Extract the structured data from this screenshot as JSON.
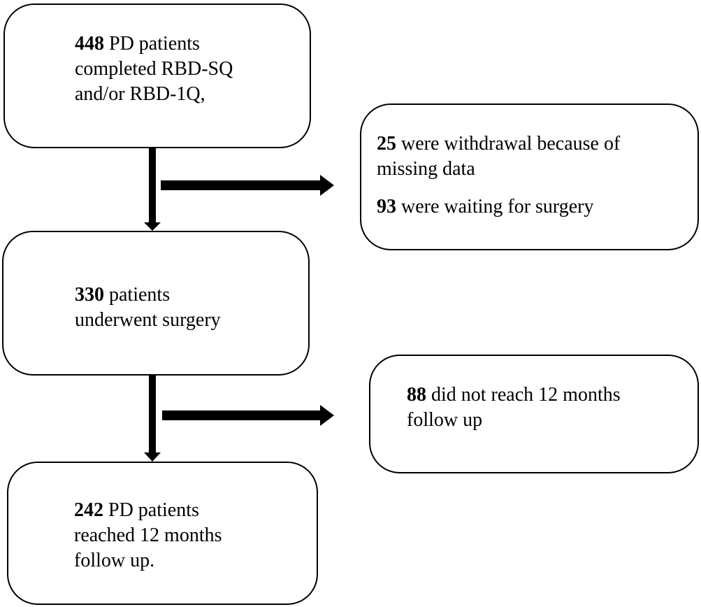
{
  "flowchart": {
    "enrolled": {
      "count": "448",
      "lines": [
        " PD patients",
        "completed RBD-SQ",
        "and/or RBD-1Q,"
      ]
    },
    "excluded_first": {
      "items": [
        {
          "count": "25",
          "lines": [
            " were withdrawal because of",
            "missing data"
          ]
        },
        {
          "count": "93",
          "lines": [
            " were waiting for surgery"
          ]
        }
      ]
    },
    "surgery": {
      "count": "330",
      "lines": [
        " patients",
        "underwent surgery"
      ]
    },
    "excluded_second": {
      "count": "88",
      "lines": [
        " did not reach 12 months",
        "follow up"
      ]
    },
    "final": {
      "count": "242",
      "lines": [
        " PD patients",
        "reached 12 months",
        "follow up."
      ]
    }
  }
}
